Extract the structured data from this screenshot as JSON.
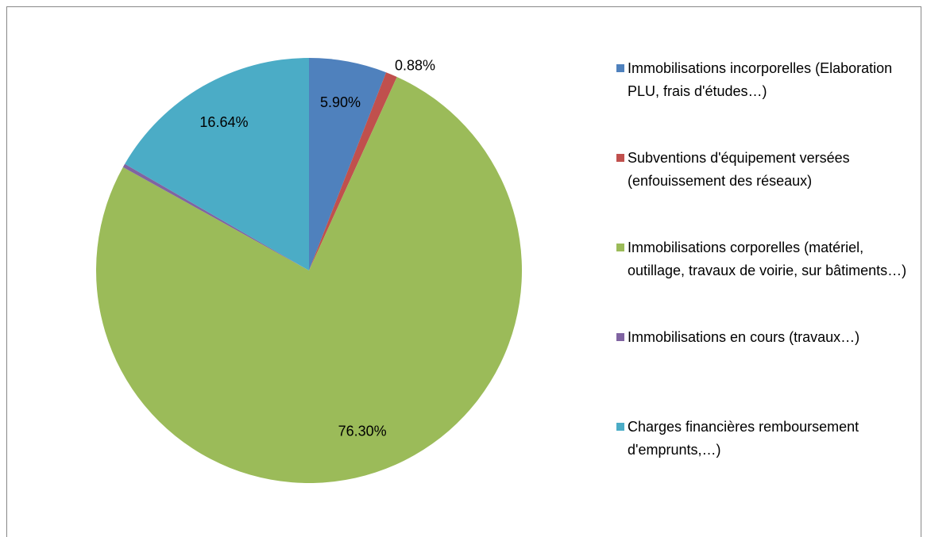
{
  "chart_data": {
    "type": "pie",
    "categories": [
      "Immobilisations incorporelles (Elaboration PLU, frais d'études…)",
      "Subventions d'équipement versées (enfouissement des réseaux)",
      "Immobilisations corporelles (matériel, outillage, travaux de voirie, sur bâtiments…)",
      "Immobilisations en cours (travaux…)",
      "Charges financières remboursement d'emprunts,…)"
    ],
    "values": [
      5.9,
      0.88,
      76.3,
      0.28,
      16.64
    ],
    "value_labels": [
      "5.90%",
      "0.88%",
      "76.30%",
      null,
      "16.64%"
    ],
    "colors": [
      "#4f81bd",
      "#c0504d",
      "#9bbb59",
      "#8064a2",
      "#4bacc6"
    ],
    "legend": "right"
  }
}
